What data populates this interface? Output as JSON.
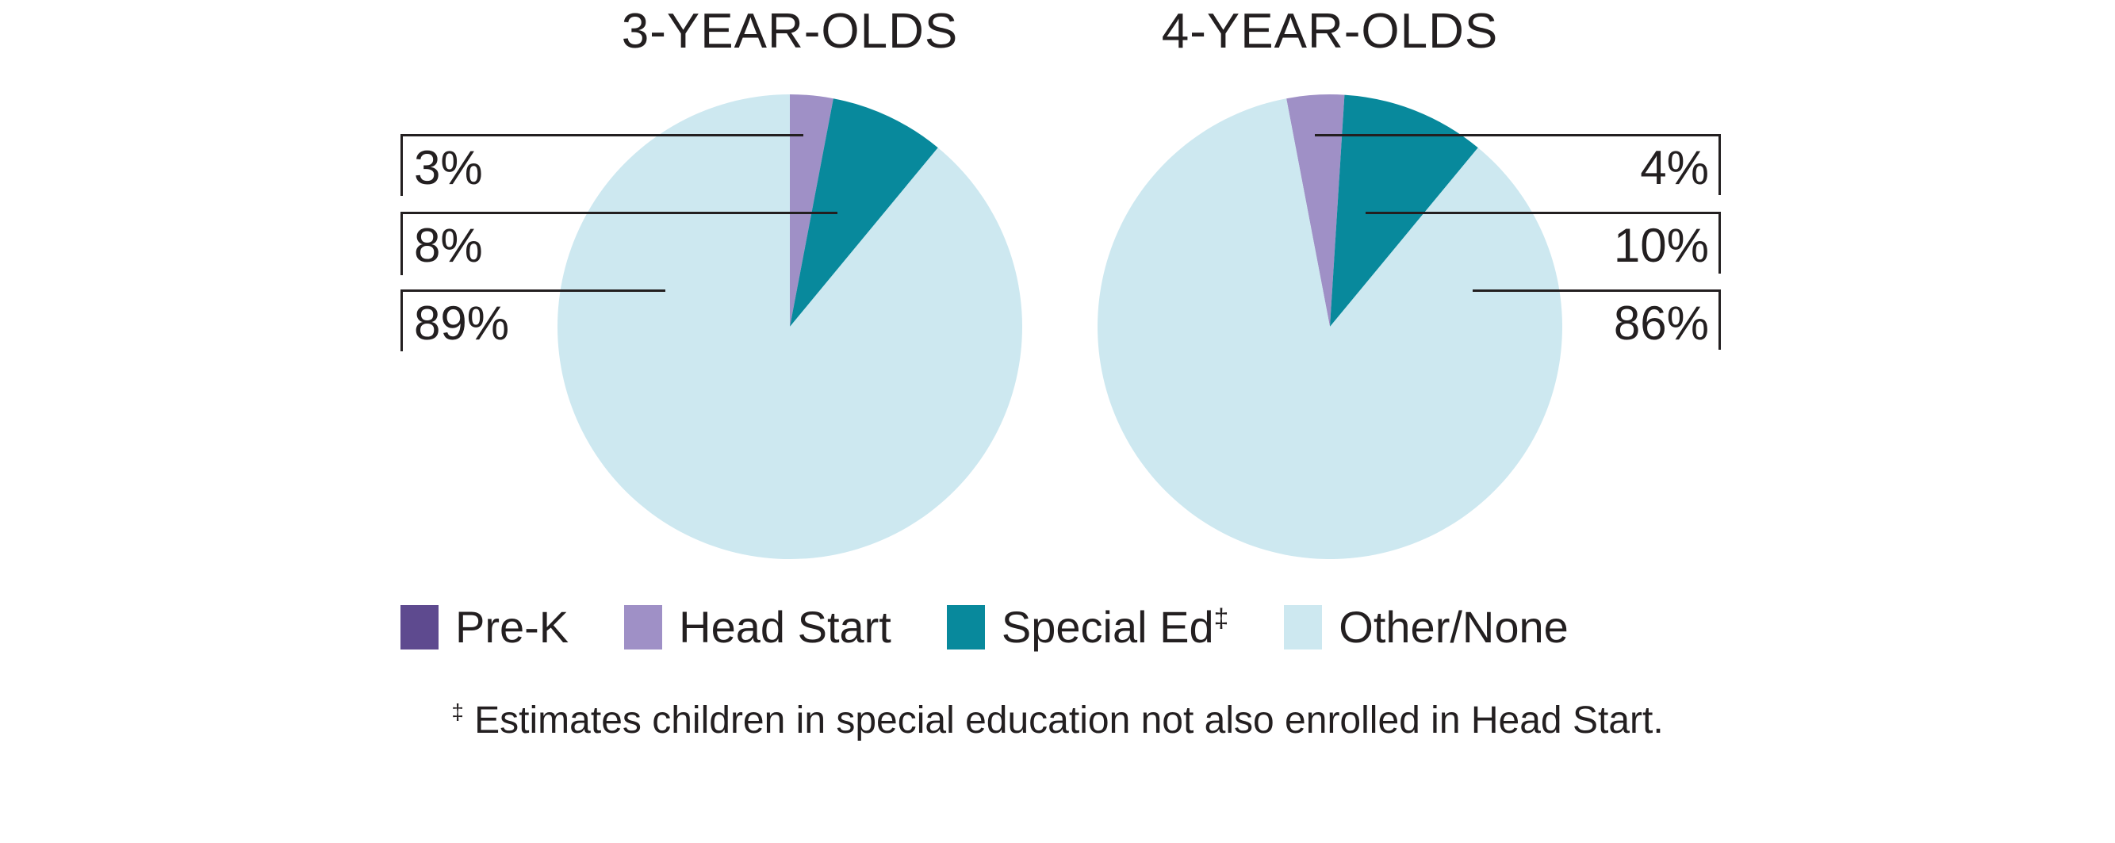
{
  "page": {
    "background": "#ffffff",
    "text_color": "#231f20",
    "line_color": "#231f20"
  },
  "chart_data": [
    {
      "type": "pie",
      "title": "3-YEAR-OLDS",
      "start_angle_deg": 0,
      "slices": [
        {
          "label": "Pre-K",
          "value": 0,
          "color": "#5e4a8f"
        },
        {
          "label": "Head Start",
          "value": 3,
          "color": "#9f90c6"
        },
        {
          "label": "Special Ed",
          "value": 8,
          "color": "#08899c"
        },
        {
          "label": "Other/None",
          "value": 89,
          "color": "#cde8f0"
        }
      ],
      "callouts": [
        "3%",
        "8%",
        "89%"
      ],
      "callout_side": "left"
    },
    {
      "type": "pie",
      "title": "4-YEAR-OLDS",
      "start_angle_deg": -10.8,
      "slices": [
        {
          "label": "Pre-K",
          "value": 0,
          "color": "#5e4a8f"
        },
        {
          "label": "Head Start",
          "value": 4,
          "color": "#9f90c6"
        },
        {
          "label": "Special Ed",
          "value": 10,
          "color": "#08899c"
        },
        {
          "label": "Other/None",
          "value": 86,
          "color": "#cde8f0"
        }
      ],
      "callouts": [
        "4%",
        "10%",
        "86%"
      ],
      "callout_side": "right"
    }
  ],
  "legend": {
    "items": [
      {
        "label": "Pre-K",
        "color": "#5e4a8f"
      },
      {
        "label": "Head Start",
        "color": "#9f90c6"
      },
      {
        "label": "Special Ed",
        "marker": "‡",
        "color": "#08899c"
      },
      {
        "label": "Other/None",
        "color": "#cde8f0"
      }
    ]
  },
  "footnote": {
    "marker": "‡",
    "text": "Estimates children in special education not also enrolled in Head Start."
  }
}
